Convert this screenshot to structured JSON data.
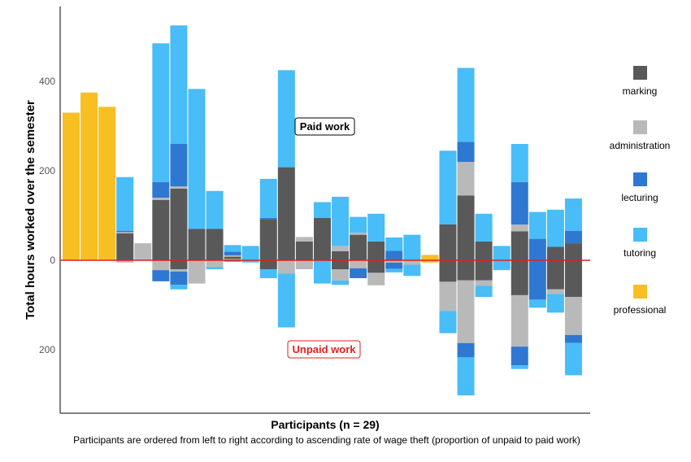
{
  "chart_data": {
    "type": "bar",
    "stacked": true,
    "diverging": true,
    "ylabel": "Total hours worked over the semester",
    "xlabel": "Participants (n = 29)",
    "caption": "Participants are ordered from left to right according to ascending rate of wage theft (proportion of unpaid to paid work)",
    "annotations": {
      "paid": "Paid work",
      "unpaid": "Unpaid work"
    },
    "y_ticks": [
      {
        "value": 400,
        "label": "400"
      },
      {
        "value": 200,
        "label": "200"
      },
      {
        "value": 0,
        "label": "0"
      },
      {
        "value": -200,
        "label": "200"
      }
    ],
    "ylim": [
      -340,
      565
    ],
    "grid": false,
    "legend_position": "right",
    "legend": [
      {
        "key": "marking",
        "label": "marking",
        "color": "#595959"
      },
      {
        "key": "administration",
        "label": "administration",
        "color": "#b9b9b9"
      },
      {
        "key": "lecturing",
        "label": "lecturing",
        "color": "#2e78d2"
      },
      {
        "key": "tutoring",
        "label": "tutoring",
        "color": "#48bdf7"
      },
      {
        "key": "professional",
        "label": "professional",
        "color": "#f7bf22"
      }
    ],
    "series_order": [
      "professional",
      "marking",
      "administration",
      "lecturing",
      "tutoring"
    ],
    "participants": [
      {
        "paid": {
          "professional": 330
        },
        "unpaid": {}
      },
      {
        "paid": {
          "professional": 375
        },
        "unpaid": {}
      },
      {
        "paid": {
          "professional": 343
        },
        "unpaid": {}
      },
      {
        "paid": {
          "marking": 60,
          "administration": 3,
          "lecturing": 3,
          "tutoring": 120
        },
        "unpaid": {
          "administration": 5
        }
      },
      {
        "paid": {
          "administration": 38
        },
        "unpaid": {}
      },
      {
        "paid": {
          "marking": 135,
          "administration": 5,
          "lecturing": 35,
          "tutoring": 310
        },
        "unpaid": {
          "administration": 22,
          "lecturing": 25
        }
      },
      {
        "paid": {
          "marking": 160,
          "administration": 5,
          "lecturing": 95,
          "tutoring": 265
        },
        "unpaid": {
          "marking": 20,
          "administration": 5,
          "lecturing": 30,
          "tutoring": 10
        }
      },
      {
        "paid": {
          "marking": 70,
          "tutoring": 313
        },
        "unpaid": {
          "administration": 52
        }
      },
      {
        "paid": {
          "marking": 70,
          "tutoring": 85
        },
        "unpaid": {
          "administration": 15,
          "tutoring": 5
        }
      },
      {
        "paid": {
          "marking": 5,
          "administration": 3,
          "lecturing": 8,
          "professional": 3,
          "tutoring": 15
        },
        "unpaid": {
          "lecturing": 3
        }
      },
      {
        "paid": {
          "tutoring": 32
        },
        "unpaid": {
          "tutoring": 5
        }
      },
      {
        "paid": {
          "marking": 92,
          "lecturing": 3,
          "tutoring": 87
        },
        "unpaid": {
          "marking": 20,
          "tutoring": 20
        }
      },
      {
        "paid": {
          "marking": 208,
          "tutoring": 217
        },
        "unpaid": {
          "administration": 30,
          "tutoring": 120
        }
      },
      {
        "paid": {
          "marking": 42,
          "administration": 10
        },
        "unpaid": {
          "administration": 20
        }
      },
      {
        "paid": {
          "marking": 95,
          "tutoring": 35
        },
        "unpaid": {
          "tutoring": 52
        }
      },
      {
        "paid": {
          "marking": 20,
          "administration": 12,
          "tutoring": 110
        },
        "unpaid": {
          "marking": 20,
          "administration": 25,
          "tutoring": 10
        }
      },
      {
        "paid": {
          "marking": 57,
          "administration": 5,
          "tutoring": 35
        },
        "unpaid": {
          "administration": 18,
          "lecturing": 22
        }
      },
      {
        "paid": {
          "marking": 42,
          "tutoring": 62
        },
        "unpaid": {
          "marking": 28,
          "administration": 28
        }
      },
      {
        "paid": {
          "marking": 3,
          "lecturing": 18,
          "tutoring": 30
        },
        "unpaid": {
          "administration": 5,
          "lecturing": 14,
          "tutoring": 8
        }
      },
      {
        "paid": {
          "tutoring": 57
        },
        "unpaid": {
          "administration": 10,
          "tutoring": 25
        }
      },
      {
        "paid": {
          "professional": 12
        },
        "unpaid": {
          "professional": 5
        }
      },
      {
        "paid": {
          "marking": 80,
          "tutoring": 165
        },
        "unpaid": {
          "marking": 48,
          "administration": 65,
          "tutoring": 50
        }
      },
      {
        "paid": {
          "marking": 145,
          "administration": 75,
          "lecturing": 45,
          "tutoring": 165
        },
        "unpaid": {
          "marking": 45,
          "administration": 140,
          "lecturing": 32,
          "tutoring": 85
        }
      },
      {
        "paid": {
          "marking": 42,
          "tutoring": 62
        },
        "unpaid": {
          "marking": 45,
          "administration": 12,
          "tutoring": 25
        }
      },
      {
        "paid": {
          "tutoring": 32
        },
        "unpaid": {
          "tutoring": 22
        }
      },
      {
        "paid": {
          "marking": 65,
          "administration": 15,
          "lecturing": 95,
          "tutoring": 85
        },
        "unpaid": {
          "marking": 78,
          "administration": 115,
          "lecturing": 42,
          "tutoring": 8
        }
      },
      {
        "paid": {
          "lecturing": 48,
          "tutoring": 60
        },
        "unpaid": {
          "lecturing": 88,
          "tutoring": 18
        }
      },
      {
        "paid": {
          "marking": 30,
          "tutoring": 83
        },
        "unpaid": {
          "marking": 65,
          "administration": 10,
          "tutoring": 42
        }
      },
      {
        "paid": {
          "marking": 38,
          "lecturing": 28,
          "tutoring": 72
        },
        "unpaid": {
          "marking": 82,
          "administration": 85,
          "lecturing": 18,
          "tutoring": 72
        }
      }
    ]
  }
}
